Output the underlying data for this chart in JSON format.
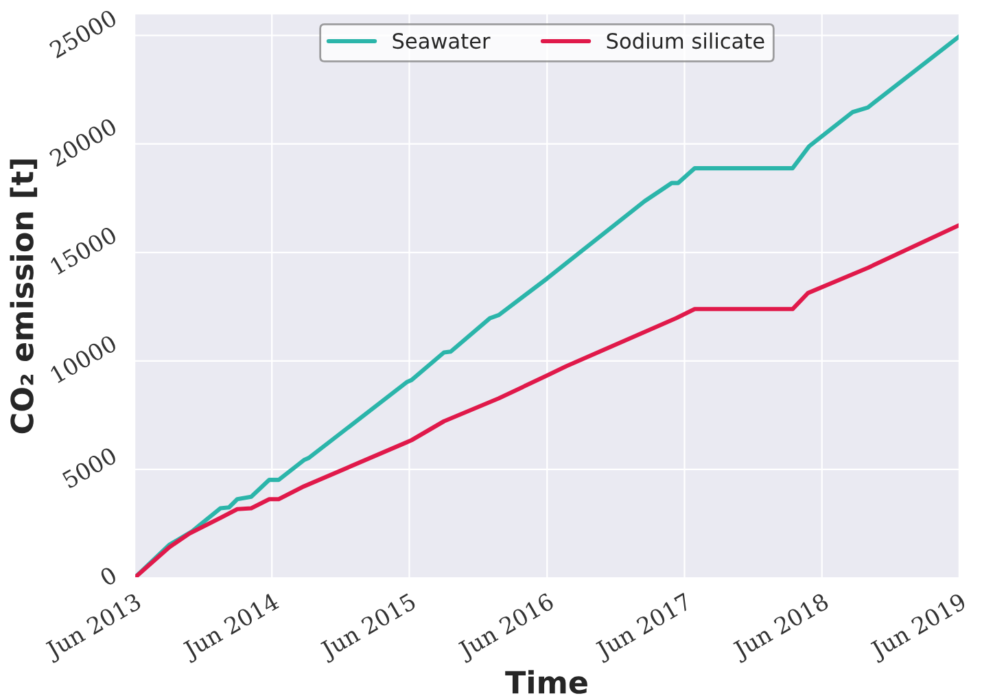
{
  "chart_data": {
    "type": "line",
    "xlabel": "Time",
    "ylabel": "CO₂ emission [t]",
    "xlim": [
      "2013-06-01",
      "2019-06-01"
    ],
    "ylim": [
      0,
      26000
    ],
    "xticks": [
      {
        "value": "2013-06-01",
        "label": "Jun 2013"
      },
      {
        "value": "2014-06-01",
        "label": "Jun 2014"
      },
      {
        "value": "2015-06-01",
        "label": "Jun 2015"
      },
      {
        "value": "2016-06-01",
        "label": "Jun 2016"
      },
      {
        "value": "2017-06-01",
        "label": "Jun 2017"
      },
      {
        "value": "2018-06-01",
        "label": "Jun 2018"
      },
      {
        "value": "2019-06-01",
        "label": "Jun 2019"
      }
    ],
    "yticks": [
      0,
      5000,
      10000,
      15000,
      20000,
      25000
    ],
    "grid": true,
    "legend": "top",
    "marker": "none",
    "line_style": "solid",
    "series": [
      {
        "name": "Seawater",
        "color": "#2bb5aa",
        "x": [
          "2013-06-01",
          "2013-09-01",
          "2013-11-01",
          "2014-01-15",
          "2014-02-07",
          "2014-03-01",
          "2014-04-07",
          "2014-05-25",
          "2014-06-19",
          "2014-08-25",
          "2014-09-07",
          "2015-05-25",
          "2015-06-07",
          "2015-09-01",
          "2015-09-19",
          "2016-01-01",
          "2016-01-25",
          "2016-06-01",
          "2016-07-22",
          "2017-02-15",
          "2017-04-28",
          "2017-05-15",
          "2017-06-28",
          "2018-03-15",
          "2018-04-28",
          "2018-08-22",
          "2018-10-01",
          "2019-06-01"
        ],
        "values": [
          0,
          1520,
          2150,
          3210,
          3250,
          3630,
          3740,
          4520,
          4520,
          5430,
          5530,
          9020,
          9120,
          10390,
          10430,
          11970,
          12120,
          13800,
          14510,
          17360,
          18200,
          18200,
          18880,
          18880,
          19890,
          21470,
          21680,
          24960
        ]
      },
      {
        "name": "Sodium silicate",
        "color": "#e0194a",
        "x": [
          "2013-06-01",
          "2013-09-01",
          "2013-10-25",
          "2014-01-18",
          "2014-03-01",
          "2014-04-07",
          "2014-05-25",
          "2014-06-19",
          "2014-08-25",
          "2015-05-25",
          "2015-06-07",
          "2015-09-01",
          "2016-01-25",
          "2016-06-01",
          "2016-07-22",
          "2017-05-10",
          "2017-06-28",
          "2018-03-15",
          "2018-04-25",
          "2018-10-01",
          "2019-06-01"
        ],
        "values": [
          0,
          1410,
          2050,
          2790,
          3170,
          3210,
          3630,
          3630,
          4220,
          6250,
          6350,
          7220,
          8280,
          9330,
          9760,
          11970,
          12390,
          12390,
          13130,
          14290,
          16260
        ]
      }
    ]
  }
}
